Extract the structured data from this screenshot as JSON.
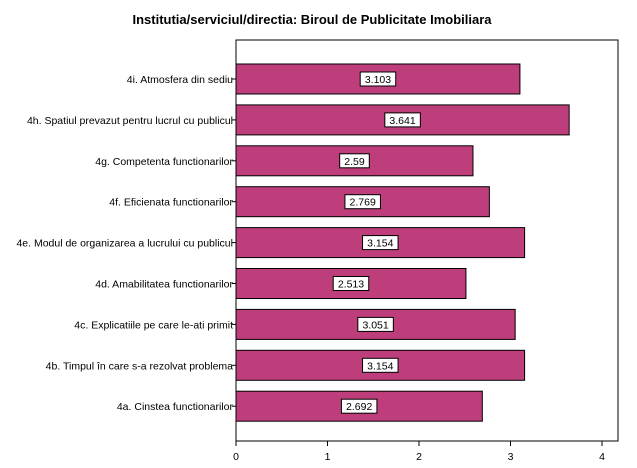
{
  "chart_data": {
    "type": "bar",
    "orientation": "horizontal",
    "title": "Institutia/serviciul/directia: Biroul de Publicitate Imobiliara",
    "xlabel": "",
    "ylabel": "",
    "categories": [
      "4i. Atmosfera din sediu",
      "4h. Spatiul prevazut pentru lucrul cu publicul",
      "4g. Competenta functionarilor",
      "4f. Eficienata functionarilor",
      "4e. Modul de organizarea a lucrului cu publicul",
      "4d. Amabilitatea functionarilor",
      "4c. Explicatiile pe care le-ati primit",
      "4b. Timpul în care s-a rezolvat problema",
      "4a. Cinstea functionarilor"
    ],
    "values": [
      3.103,
      3.641,
      2.59,
      2.769,
      3.154,
      2.513,
      3.051,
      3.154,
      2.692
    ],
    "value_labels": [
      "3.103",
      "3.641",
      "2.59",
      "2.769",
      "3.154",
      "2.513",
      "3.051",
      "3.154",
      "2.692"
    ],
    "xlim": [
      0,
      4.2
    ],
    "xticks": [
      0,
      1,
      2,
      3,
      4
    ],
    "grid": false,
    "bar_color": "#be3e7c",
    "bar_edge_color": "#000000"
  }
}
